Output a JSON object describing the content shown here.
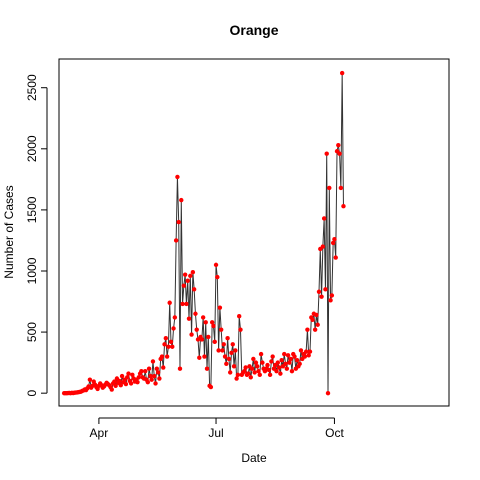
{
  "chart_data": {
    "type": "line",
    "title": "Orange",
    "xlabel": "Date",
    "ylabel": "Number of Cases",
    "xlim": [
      "2020-03-01",
      "2020-12-29"
    ],
    "ylim": [
      0,
      2650
    ],
    "x_ticks": [
      {
        "date": "2020-04-01",
        "label": "Apr"
      },
      {
        "date": "2020-07-01",
        "label": "Jul"
      },
      {
        "date": "2020-10-01",
        "label": "Oct"
      }
    ],
    "y_ticks": [
      0,
      500,
      1000,
      1500,
      2000,
      2500
    ],
    "line_color": "#333333",
    "point_color": "#ff0000",
    "series": [
      {
        "start_date": "2020-03-05",
        "values": [
          0,
          0,
          0,
          1,
          2,
          0,
          3,
          1,
          4,
          5,
          6,
          8,
          10,
          12,
          18,
          22,
          30,
          25,
          40,
          55,
          110,
          45,
          60,
          95,
          70,
          50,
          35,
          60,
          80,
          65,
          45,
          55,
          70,
          85,
          75,
          65,
          50,
          30,
          80,
          95,
          60,
          120,
          85,
          100,
          65,
          140,
          90,
          110,
          75,
          130,
          160,
          100,
          80,
          150,
          120,
          95,
          110,
          90,
          130,
          160,
          180,
          130,
          120,
          180,
          110,
          90,
          200,
          140,
          110,
          260,
          140,
          80,
          200,
          170,
          120,
          280,
          300,
          210,
          400,
          450,
          300,
          380,
          740,
          420,
          380,
          530,
          620,
          1250,
          1770,
          1400,
          200,
          1580,
          730,
          880,
          970,
          730,
          920,
          610,
          960,
          480,
          990,
          850,
          650,
          520,
          440,
          290,
          460,
          440,
          620,
          300,
          580,
          200,
          460,
          60,
          50,
          580,
          550,
          420,
          1050,
          950,
          350,
          700,
          520,
          350,
          400,
          300,
          240,
          450,
          280,
          170,
          330,
          400,
          220,
          350,
          120,
          150,
          630,
          520,
          150,
          170,
          180,
          210,
          150,
          160,
          220,
          130,
          200,
          280,
          170,
          250,
          220,
          180,
          150,
          320,
          250,
          200,
          180,
          200,
          230,
          190,
          150,
          260,
          300,
          200,
          230,
          180,
          250,
          210,
          160,
          270,
          220,
          320,
          240,
          200,
          310,
          250,
          280,
          180,
          320,
          300,
          200,
          270,
          220,
          240,
          350,
          280,
          320,
          300,
          340,
          520,
          310,
          340,
          620,
          600,
          650,
          520,
          640,
          560,
          830,
          1180,
          790,
          1200,
          1430,
          850,
          1960,
          0,
          1680,
          760,
          800,
          1230,
          1260,
          1110,
          1980,
          2030,
          1960,
          1680,
          2620,
          1530
        ]
      }
    ]
  }
}
